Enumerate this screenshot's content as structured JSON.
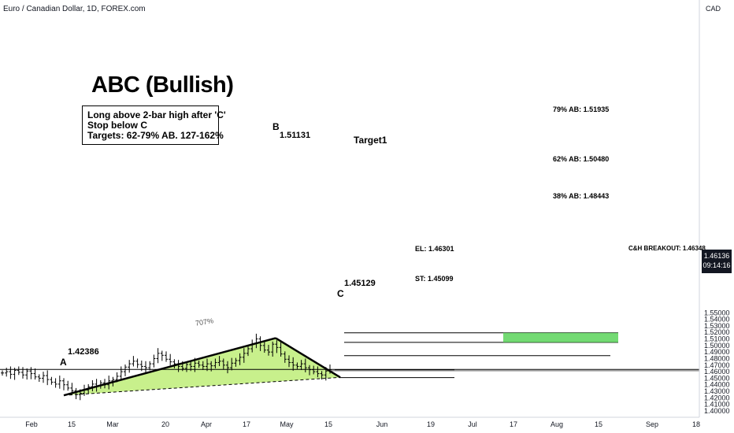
{
  "header": {
    "symbol_title": "Euro / Canadian Dollar, 1D, FOREX.com",
    "currency": "CAD"
  },
  "annotation": {
    "title": "ABC (Bullish)",
    "notes": [
      "Long above 2-bar high after 'C'",
      "Stop below C",
      "Targets:  62-79% AB. 127-162%"
    ]
  },
  "levels": {
    "ab79": "79% AB: 1.51935",
    "ab62": "62% AB: 1.50480",
    "ab38": "38% AB: 1.48443",
    "el": "EL: 1.46301",
    "st": "ST: 1.45099",
    "target_label": "Target1",
    "breakout": "C&H BREAKOUT: 1.46348"
  },
  "points": {
    "a_letter": "A",
    "a_price": "1.42386",
    "b_letter": "B",
    "b_price": "1.51131",
    "c_letter": "C",
    "c_price": "1.45129",
    "ac_ratio": "707%"
  },
  "price_badge": {
    "price": "1.46136",
    "timer": "09:14:16"
  },
  "colors": {
    "triangle_fill": "#c8f08c",
    "target_fill": "#5ad35a",
    "line": "#000000",
    "axis_text": "#131722"
  },
  "chart_data": {
    "type": "candlestick",
    "title": "Euro / Canadian Dollar, 1D, FOREX.com",
    "ylim": [
      1.4,
      1.5575
    ],
    "y_ticks": [
      "1.55000",
      "1.54000",
      "1.53000",
      "1.52000",
      "1.51000",
      "1.50000",
      "1.49000",
      "1.48000",
      "1.47000",
      "1.46000",
      "1.45000",
      "1.44000",
      "1.43000",
      "1.42000",
      "1.41000",
      "1.40000"
    ],
    "x_ticks": [
      "Feb",
      "15",
      "Mar",
      "20",
      "Apr",
      "17",
      "May",
      "15",
      "Jun",
      "19",
      "Jul",
      "17",
      "Aug",
      "15",
      "Sep",
      "18"
    ],
    "pattern": {
      "A": 1.42386,
      "B": 1.51131,
      "C": 1.45129
    },
    "horizontal_levels": {
      "79% AB": 1.51935,
      "62% AB": 1.5048,
      "38% AB": 1.48443,
      "EL": 1.46301,
      "ST": 1.45099,
      "C&H BREAKOUT": 1.46348
    },
    "last_price": 1.46136,
    "series": [
      {
        "close": [
          1.458,
          1.46,
          1.456,
          1.462,
          1.459,
          1.455,
          1.461,
          1.457,
          1.452,
          1.45,
          1.454,
          1.448,
          1.444,
          1.441,
          1.446,
          1.44,
          1.435,
          1.431,
          1.425,
          1.427,
          1.432,
          1.437,
          1.441,
          1.438,
          1.443,
          1.44,
          1.446,
          1.448,
          1.453,
          1.46,
          1.467,
          1.472,
          1.476,
          1.471,
          1.468,
          1.466,
          1.472,
          1.48,
          1.488,
          1.485,
          1.479,
          1.475,
          1.472,
          1.468,
          1.465,
          1.471,
          1.468,
          1.473,
          1.47,
          1.468,
          1.472,
          1.469,
          1.474,
          1.476,
          1.47,
          1.466,
          1.473,
          1.477,
          1.482,
          1.488,
          1.495,
          1.503,
          1.51,
          1.5,
          1.493,
          1.49,
          1.502,
          1.497,
          1.487,
          1.479,
          1.474,
          1.47,
          1.468,
          1.472,
          1.466,
          1.463,
          1.46,
          1.457,
          1.455,
          1.461,
          1.463
        ]
      }
    ]
  }
}
